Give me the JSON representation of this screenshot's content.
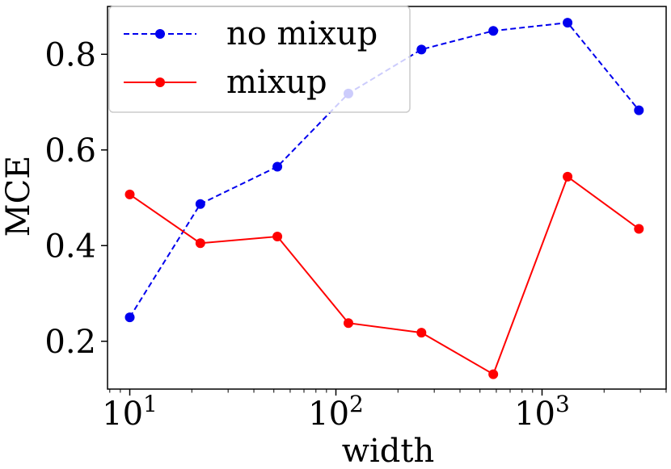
{
  "chart_data": {
    "type": "line",
    "xscale": "log",
    "xlabel": "width",
    "ylabel": "MCE",
    "xlim": [
      7.8,
      4000
    ],
    "ylim": [
      0.1,
      0.9
    ],
    "xticks": [
      10,
      100,
      1000
    ],
    "xtick_labels": [
      {
        "base": "10",
        "exp": "1"
      },
      {
        "base": "10",
        "exp": "2"
      },
      {
        "base": "10",
        "exp": "3"
      }
    ],
    "yticks": [
      0.2,
      0.4,
      0.6,
      0.8
    ],
    "ytick_labels": [
      "0.2",
      "0.4",
      "0.6",
      "0.8"
    ],
    "grid": false,
    "legend_position": "top-left",
    "x": [
      10,
      22,
      52,
      115,
      260,
      580,
      1330,
      2950
    ],
    "series": [
      {
        "name": "no mixup",
        "color": "#0000ee",
        "linestyle": "dashed",
        "marker": "circle",
        "values": [
          0.25,
          0.487,
          0.565,
          0.718,
          0.81,
          0.849,
          0.866,
          0.683
        ]
      },
      {
        "name": "mixup",
        "color": "#ff0000",
        "linestyle": "solid",
        "marker": "circle",
        "values": [
          0.507,
          0.405,
          0.419,
          0.238,
          0.218,
          0.131,
          0.544,
          0.435
        ]
      }
    ]
  }
}
